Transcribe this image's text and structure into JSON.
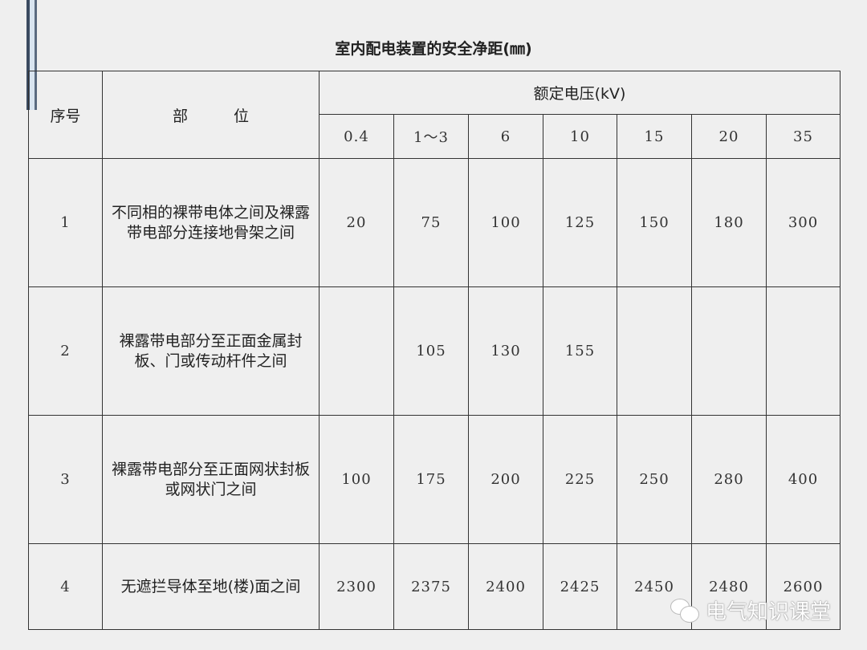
{
  "title": "室内配电装置的安全净距(㎜)",
  "header": {
    "seq": "序号",
    "part": "部　　　位",
    "voltage": "额定电压(kV)",
    "voltages": [
      "0.4",
      "1～3",
      "6",
      "10",
      "15",
      "20",
      "35"
    ]
  },
  "rows": [
    {
      "seq": "1",
      "part": "不同相的裸带电体之间及裸露带电部分连接地骨架之间",
      "values": [
        "20",
        "75",
        "100",
        "125",
        "150",
        "180",
        "300"
      ]
    },
    {
      "seq": "2",
      "part": "裸露带电部分至正面金属封板、门或传动杆件之间",
      "values": [
        "",
        "105",
        "130",
        "155",
        "",
        "",
        ""
      ]
    },
    {
      "seq": "3",
      "part": "裸露带电部分至正面网状封板或网状门之间",
      "values": [
        "100",
        "175",
        "200",
        "225",
        "250",
        "280",
        "400"
      ]
    },
    {
      "seq": "4",
      "part": "无遮拦导体至地(楼)面之间",
      "values": [
        "2300",
        "2375",
        "2400",
        "2425",
        "2450",
        "2480",
        "2600"
      ]
    }
  ],
  "watermark": "电气知识课堂"
}
